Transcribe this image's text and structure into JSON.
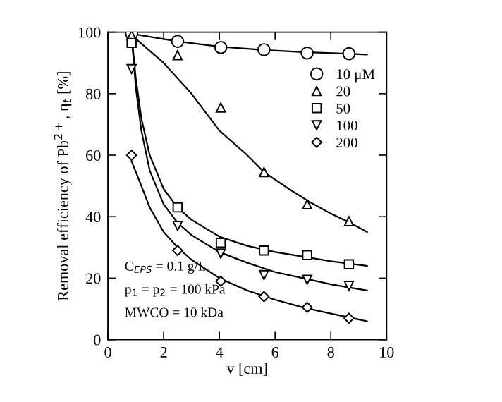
{
  "chart_data": {
    "type": "scatter",
    "xlabel": "v [cm]",
    "ylabel": "Removal efficiency of Pb$^{2+}$, η$_{t}$ [%]",
    "xlim": [
      0,
      10
    ],
    "ylim": [
      0,
      100
    ],
    "xticks": [
      0,
      2,
      4,
      6,
      8,
      10
    ],
    "yticks": [
      0,
      20,
      40,
      60,
      80,
      100
    ],
    "grid": false,
    "legend": "top right",
    "annotations": [
      "C$_{EPS}$ = 0.1 g/L",
      "p$_{1}$ = p$_{2}$ = 100 kPa",
      "MWCO = 10 kDa"
    ],
    "series": [
      {
        "name": "10 μM",
        "color": "#000000",
        "marker": "circle",
        "x": [
          0.85,
          2.5,
          4.05,
          5.6,
          7.15,
          8.65
        ],
        "values": [
          99.5,
          97,
          95,
          94.3,
          93.2,
          93
        ]
      },
      {
        "name": "20",
        "color": "#000000",
        "marker": "triangle",
        "x": [
          0.85,
          2.5,
          4.05,
          5.6,
          7.15,
          8.65
        ],
        "values": [
          99,
          92.5,
          75.5,
          54.5,
          44,
          38.5
        ]
      },
      {
        "name": "50",
        "color": "#000000",
        "marker": "square",
        "x": [
          0.85,
          2.5,
          4.05,
          5.6,
          7.15,
          8.65
        ],
        "values": [
          96.5,
          43,
          31.5,
          29,
          27.5,
          24.5
        ]
      },
      {
        "name": "100",
        "color": "#000000",
        "marker": "triangle_down",
        "x": [
          0.85,
          2.5,
          4.05,
          5.6,
          7.15,
          8.65
        ],
        "values": [
          88,
          37,
          28,
          21,
          19.5,
          17.5
        ]
      },
      {
        "name": "200",
        "color": "#000000",
        "marker": "diamond",
        "x": [
          0.85,
          2.5,
          4.05,
          5.6,
          7.15,
          8.65
        ],
        "values": [
          60,
          29,
          19,
          14,
          10.5,
          7
        ]
      },
      {
        "type": "line",
        "color": "#000000",
        "marker": "none",
        "x": [
          0.85,
          2.5,
          4,
          5.6,
          7,
          8.6,
          9.3
        ],
        "values": [
          99.5,
          97,
          95.3,
          94.2,
          93.5,
          93,
          92.7
        ]
      },
      {
        "type": "line",
        "color": "#000000",
        "marker": "none",
        "x": [
          0.85,
          2,
          3,
          4,
          5,
          5.6,
          6.5,
          7.2,
          8,
          8.7,
          9.3
        ],
        "values": [
          99,
          90,
          80,
          68,
          60,
          54.5,
          49,
          45,
          41,
          38,
          35
        ]
      },
      {
        "type": "line",
        "color": "#000000",
        "marker": "none",
        "x": [
          0.85,
          1.0,
          1.2,
          1.5,
          2,
          2.5,
          3,
          4,
          5,
          6,
          7,
          8,
          9.3
        ],
        "values": [
          99,
          85,
          72,
          60,
          49,
          43,
          39,
          33.5,
          30.5,
          28.5,
          27,
          25.5,
          24
        ]
      },
      {
        "type": "line",
        "color": "#000000",
        "marker": "none",
        "x": [
          0.85,
          1.0,
          1.2,
          1.5,
          2,
          2.5,
          3,
          4,
          5,
          6,
          7,
          8,
          9.3
        ],
        "values": [
          99,
          82,
          68,
          55,
          44,
          38,
          34,
          28.5,
          25,
          22,
          20,
          18,
          16
        ]
      },
      {
        "type": "line",
        "color": "#000000",
        "marker": "none",
        "x": [
          0.85,
          1.2,
          1.5,
          2,
          2.5,
          3,
          4,
          5,
          6,
          7,
          8,
          9.3
        ],
        "values": [
          58,
          50,
          43,
          35,
          30,
          26,
          20,
          16,
          13,
          10.5,
          8.5,
          6
        ]
      }
    ]
  }
}
